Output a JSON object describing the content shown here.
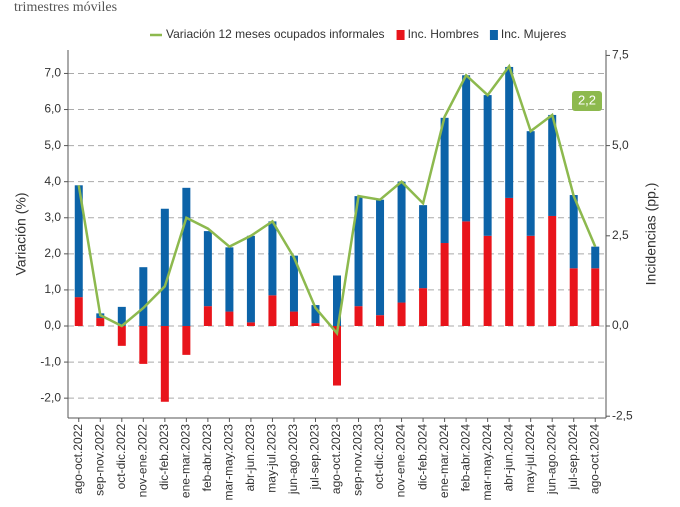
{
  "chart_data": {
    "type": "bar",
    "subtitle": "trimestres móviles",
    "y_label": "Variación (%)",
    "y2_label": "Incidencias (pp.)",
    "annotation": "2,2",
    "categories": [
      "ago-oct.2022",
      "sep-nov.2022",
      "oct-dic.2022",
      "nov-ene.2022",
      "dic-feb.2023",
      "ene-mar.2023",
      "feb-abr.2023",
      "mar-may.2023",
      "abr-jun.2023",
      "may-jul.2023",
      "jun-ago.2023",
      "jul-sep.2023",
      "ago-oct.2023",
      "sep-nov.2023",
      "oct-dic.2023",
      "nov-ene.2024",
      "dic-feb.2024",
      "ene-mar.2024",
      "feb-abr.2024",
      "mar-may.2024",
      "abr-jun.2024",
      "may-jul.2024",
      "jun-ago.2024",
      "jul-sep.2024",
      "ago-oct.2024"
    ],
    "series": [
      {
        "name": "Variación 12 meses ocupados informales",
        "type": "line",
        "color": "#8db94e",
        "axis": "y",
        "values": [
          3.9,
          0.3,
          0.0,
          0.5,
          1.1,
          3.0,
          2.7,
          2.2,
          2.5,
          2.9,
          1.9,
          0.5,
          -0.2,
          3.6,
          3.5,
          4.0,
          3.4,
          5.8,
          6.95,
          6.4,
          7.2,
          5.4,
          5.85,
          3.6,
          2.2
        ]
      },
      {
        "name": "Inc. Hombres",
        "type": "bar",
        "color": "#e8141b",
        "axis": "y2",
        "values": [
          0.8,
          0.22,
          -0.55,
          -1.05,
          -2.1,
          -0.8,
          0.55,
          0.4,
          0.1,
          0.85,
          0.4,
          0.08,
          -1.65,
          0.55,
          0.3,
          0.65,
          1.05,
          2.3,
          2.9,
          2.5,
          3.55,
          2.5,
          3.05,
          1.6,
          1.6
        ]
      },
      {
        "name": "Inc. Mujeres",
        "type": "bar",
        "color": "#0c63a8",
        "axis": "y2",
        "values": [
          3.1,
          0.13,
          0.53,
          1.63,
          3.25,
          3.83,
          2.08,
          1.78,
          2.4,
          2.05,
          1.55,
          0.5,
          1.4,
          3.05,
          3.2,
          3.35,
          2.3,
          3.47,
          4.05,
          3.9,
          3.63,
          2.9,
          2.8,
          2.03,
          0.6
        ]
      }
    ],
    "ylim": [
      -2.55,
      7.65
    ],
    "yticks": [
      {
        "value": -2,
        "label": "-2,0"
      },
      {
        "value": -1,
        "label": "-1,0"
      },
      {
        "value": 0,
        "label": "0,0"
      },
      {
        "value": 1,
        "label": "1,0"
      },
      {
        "value": 2,
        "label": "2,0"
      },
      {
        "value": 3,
        "label": "3,0"
      },
      {
        "value": 4,
        "label": "4,0"
      },
      {
        "value": 5,
        "label": "5,0"
      },
      {
        "value": 6,
        "label": "6,0"
      },
      {
        "value": 7,
        "label": "7,0"
      }
    ],
    "y2lim": [
      -2.55,
      7.65
    ],
    "y2ticks": [
      {
        "value": -2.5,
        "label": "-2,5"
      },
      {
        "value": 0,
        "label": "0,0"
      },
      {
        "value": 2.5,
        "label": "2,5"
      },
      {
        "value": 5,
        "label": "5,0"
      },
      {
        "value": 7.5,
        "label": "7,5"
      }
    ],
    "grid": true
  }
}
